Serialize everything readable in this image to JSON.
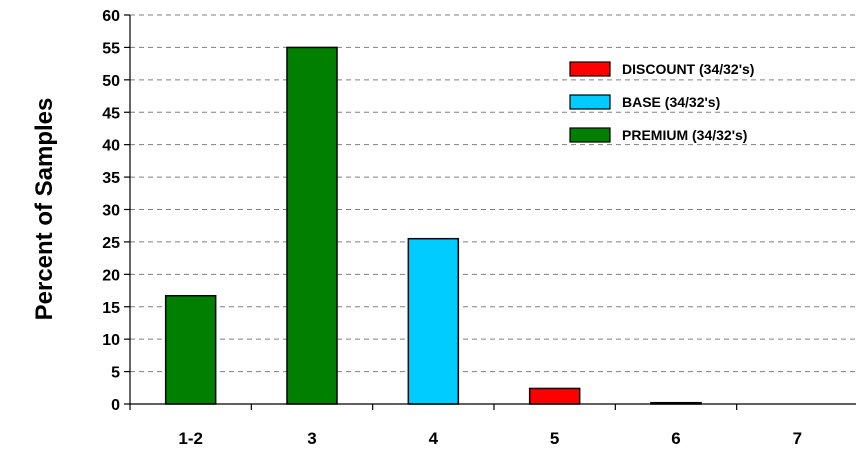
{
  "chart_data": {
    "type": "bar",
    "title": "",
    "xlabel": "",
    "ylabel": "Percent of Samples",
    "ylim": [
      0,
      60
    ],
    "ytick_step": 5,
    "grid": true,
    "legend_position": "top-right",
    "categories": [
      "1-2",
      "3",
      "4",
      "5",
      "6",
      "7"
    ],
    "series": [
      {
        "name": "DISCOUNT (34/32's)",
        "color": "#ff0000",
        "values": [
          0,
          0,
          0,
          2.4,
          0,
          0
        ]
      },
      {
        "name": "BASE (34/32's)",
        "color": "#00ccff",
        "values": [
          0,
          0,
          25.5,
          0,
          0,
          0
        ]
      },
      {
        "name": "PREMIUM (34/32's)",
        "color": "#007f00",
        "values": [
          16.7,
          55,
          0,
          0,
          0,
          0
        ]
      }
    ],
    "visible_extra_marks": [
      {
        "category": "6",
        "value": 0.2,
        "color": "#007f00"
      }
    ]
  }
}
